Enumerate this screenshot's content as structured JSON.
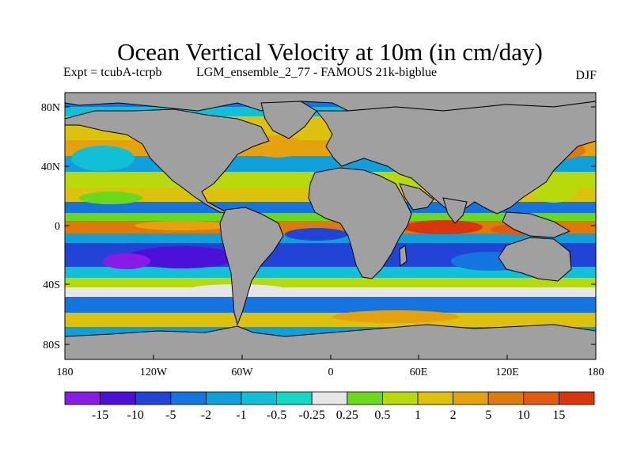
{
  "title": "Ocean Vertical Velocity at 10m (in cm/day)",
  "subtitle_left": "Expt = tcubA-tcrpb",
  "subtitle_right": "LGM_ensemble_2_77 - FAMOUS 21k-bigblue",
  "season": "DJF",
  "y_ticks": [
    "80N",
    "40N",
    "0",
    "40S",
    "80S"
  ],
  "x_ticks": [
    "180",
    "120W",
    "60W",
    "0",
    "60E",
    "120E",
    "180"
  ],
  "colorbar": {
    "labels": [
      "-15",
      "-10",
      "-5",
      "-2",
      "-1",
      "-0.5",
      "-0.25",
      "0.25",
      "0.5",
      "1",
      "2",
      "5",
      "10",
      "15"
    ],
    "colors": [
      "#8a1ae6",
      "#4d10d9",
      "#2244d6",
      "#1474e0",
      "#0fa0dc",
      "#11c0d6",
      "#16d6c4",
      "#e6e6e6",
      "#6ad91a",
      "#b8d90c",
      "#dcc20c",
      "#e6a20c",
      "#dc7a0c",
      "#e05a10",
      "#d9360e"
    ]
  },
  "land_color": "#a0a0a0",
  "chart_data": {
    "type": "heatmap",
    "title": "Ocean Vertical Velocity at 10m (in cm/day)",
    "units": "cm/day",
    "season": "DJF",
    "x_range": [
      -180,
      180
    ],
    "y_range": [
      -90,
      90
    ],
    "levels": [
      -15,
      -10,
      -5,
      -2,
      -1,
      -0.5,
      -0.25,
      0.25,
      0.5,
      1,
      2,
      5,
      10,
      15
    ]
  }
}
